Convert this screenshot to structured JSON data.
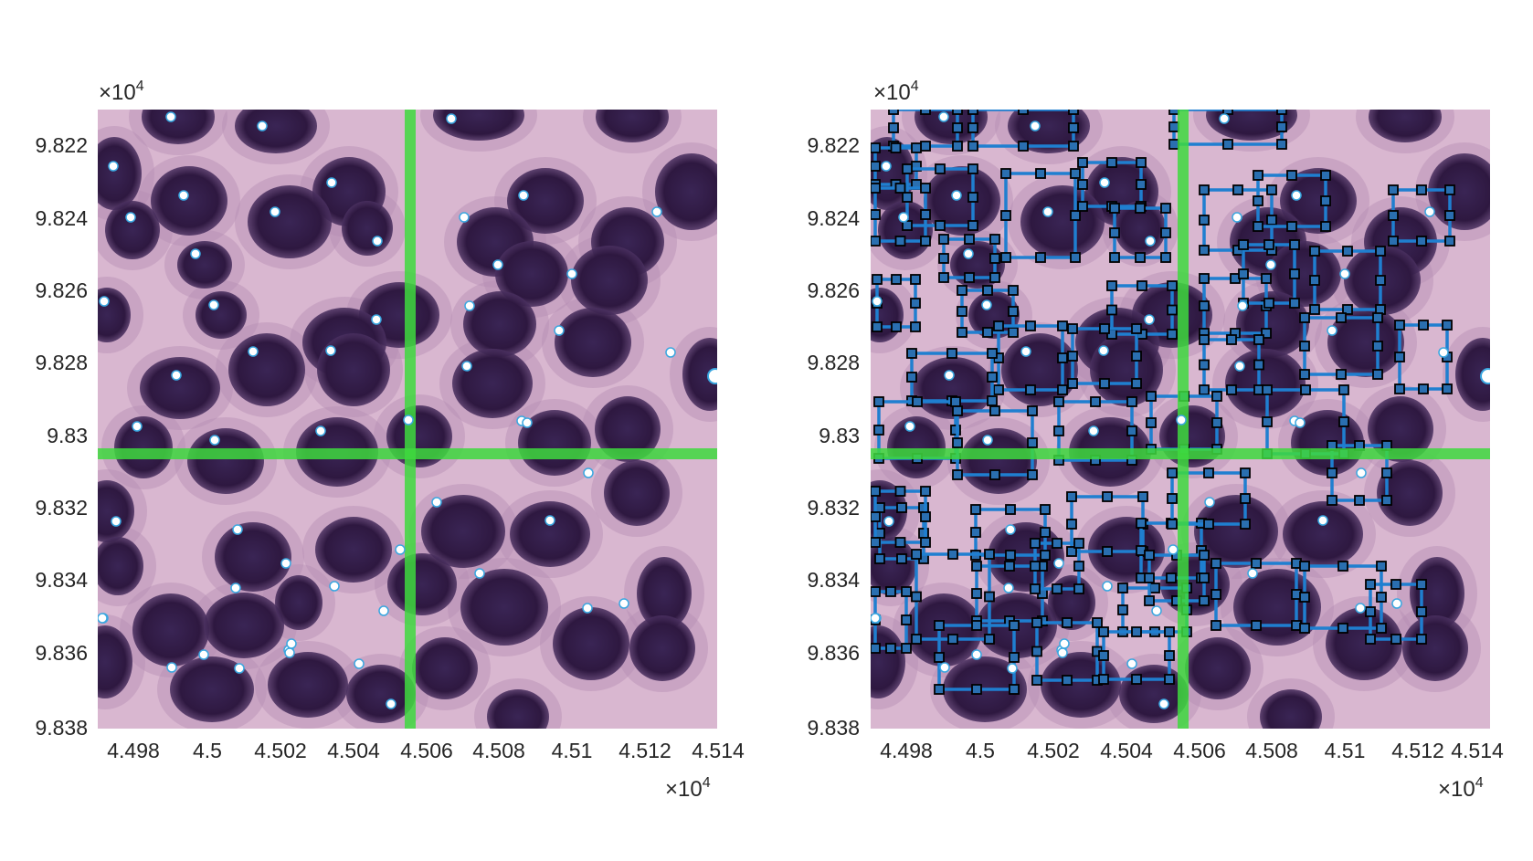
{
  "panels": [
    {
      "id": "left",
      "y_multiplier": {
        "base": "×10",
        "exponent": "4"
      },
      "x_multiplier": {
        "base": "×10",
        "exponent": "4"
      },
      "y_ticks": [
        "9.822",
        "9.824",
        "9.826",
        "9.828",
        "9.83",
        "9.832",
        "9.834",
        "9.836",
        "9.838"
      ],
      "x_ticks": [
        "4.498",
        "4.5",
        "4.502",
        "4.504",
        "4.506",
        "4.508",
        "4.51",
        "4.512",
        "4.514"
      ],
      "show_boxes": false
    },
    {
      "id": "right",
      "y_multiplier": {
        "base": "×10",
        "exponent": "4"
      },
      "x_multiplier": {
        "base": "×10",
        "exponent": "4"
      },
      "y_ticks": [
        "9.822",
        "9.824",
        "9.826",
        "9.828",
        "9.83",
        "9.832",
        "9.834",
        "9.836",
        "9.838"
      ],
      "x_ticks": [
        "4.498",
        "4.5",
        "4.502",
        "4.504",
        "4.506",
        "4.508",
        "4.51",
        "4.512",
        "4.514"
      ],
      "show_boxes": true
    }
  ],
  "colors": {
    "tissue_background": "#d9b7d0",
    "nucleus": "#2e1840",
    "nucleus_edge": "#3d2452",
    "centroid_marker": "#ffffff",
    "centroid_edge": "#3aa7e0",
    "grid_line": "#3ed93e",
    "box_line": "#1f7fd0",
    "box_handle_fill": "#2a6fb0",
    "box_handle_edge": "#000000"
  }
}
